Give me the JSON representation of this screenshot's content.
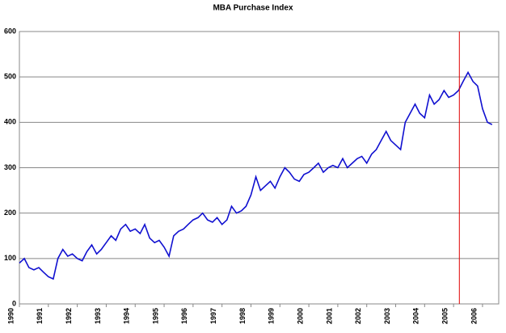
{
  "chart_data": {
    "type": "line",
    "title": "MBA Purchase Index",
    "x": [
      1990,
      1990.17,
      1990.33,
      1990.5,
      1990.67,
      1990.83,
      1991,
      1991.17,
      1991.33,
      1991.5,
      1991.67,
      1991.83,
      1992,
      1992.17,
      1992.33,
      1992.5,
      1992.67,
      1992.83,
      1993,
      1993.17,
      1993.33,
      1993.5,
      1993.67,
      1993.83,
      1994,
      1994.17,
      1994.33,
      1994.5,
      1994.67,
      1994.83,
      1995,
      1995.17,
      1995.33,
      1995.5,
      1995.67,
      1995.83,
      1996,
      1996.17,
      1996.33,
      1996.5,
      1996.67,
      1996.83,
      1997,
      1997.17,
      1997.33,
      1997.5,
      1997.67,
      1997.83,
      1998,
      1998.17,
      1998.33,
      1998.5,
      1998.67,
      1998.83,
      1999,
      1999.17,
      1999.33,
      1999.5,
      1999.67,
      1999.83,
      2000,
      2000.17,
      2000.33,
      2000.5,
      2000.67,
      2000.83,
      2001,
      2001.17,
      2001.33,
      2001.5,
      2001.67,
      2001.83,
      2002,
      2002.17,
      2002.33,
      2002.5,
      2002.67,
      2002.83,
      2003,
      2003.17,
      2003.33,
      2003.5,
      2003.67,
      2003.83,
      2004,
      2004.17,
      2004.33,
      2004.5,
      2004.67,
      2004.83,
      2005,
      2005.17,
      2005.33,
      2005.5,
      2005.67,
      2005.83,
      2006,
      2006.17,
      2006.33
    ],
    "series": [
      {
        "color": "#1010d0",
        "values": [
          90,
          100,
          80,
          75,
          80,
          70,
          60,
          55,
          100,
          120,
          105,
          110,
          100,
          95,
          115,
          130,
          110,
          120,
          135,
          150,
          140,
          165,
          175,
          160,
          165,
          155,
          175,
          145,
          135,
          140,
          125,
          105,
          150,
          160,
          165,
          175,
          185,
          190,
          200,
          185,
          180,
          190,
          175,
          185,
          215,
          200,
          205,
          215,
          240,
          280,
          250,
          260,
          270,
          255,
          280,
          300,
          290,
          275,
          270,
          285,
          290,
          300,
          310,
          290,
          300,
          305,
          300,
          320,
          300,
          310,
          320,
          325,
          310,
          330,
          340,
          360,
          380,
          360,
          350,
          340,
          400,
          420,
          440,
          420,
          410,
          460,
          440,
          450,
          470,
          455,
          460,
          470,
          490,
          510,
          490,
          480,
          430,
          400,
          395
        ]
      }
    ],
    "xlim": [
      1990,
      2006.56
    ],
    "xticks": [
      1990,
      1991,
      1992,
      1993,
      1994,
      1995,
      1996,
      1997,
      1998,
      1999,
      2000,
      2001,
      2002,
      2003,
      2004,
      2005,
      2006
    ],
    "ylim": [
      0,
      600
    ],
    "yticks": [
      0,
      100,
      200,
      300,
      400,
      500,
      600
    ],
    "grid": true,
    "vline": {
      "x": 2005.2,
      "color": "#e00000"
    }
  }
}
